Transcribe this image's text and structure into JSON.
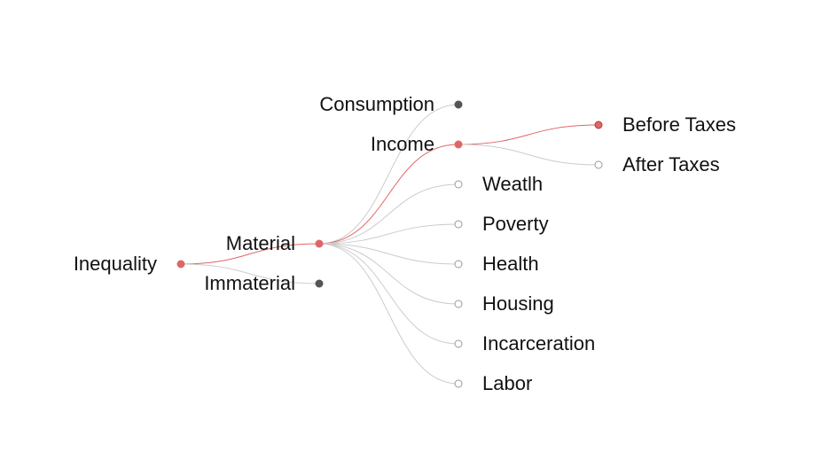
{
  "tree": {
    "highlight_color": "#e06666",
    "link_color": "#cccccc",
    "filled_color": "#555555",
    "open_fill": "#ffffff",
    "open_stroke": "#999999",
    "nodes": [
      {
        "id": "inequality",
        "label": "Inequality",
        "parent": null,
        "state": "active"
      },
      {
        "id": "material",
        "label": "Material",
        "parent": "inequality",
        "state": "active"
      },
      {
        "id": "immaterial",
        "label": "Immaterial",
        "parent": "inequality",
        "state": "collapsed"
      },
      {
        "id": "consumption",
        "label": "Consumption",
        "parent": "material",
        "state": "collapsed"
      },
      {
        "id": "income",
        "label": "Income",
        "parent": "material",
        "state": "active"
      },
      {
        "id": "wealth",
        "label": "Weatlh",
        "parent": "material",
        "state": "leaf"
      },
      {
        "id": "poverty",
        "label": "Poverty",
        "parent": "material",
        "state": "leaf"
      },
      {
        "id": "health",
        "label": "Health",
        "parent": "material",
        "state": "leaf"
      },
      {
        "id": "housing",
        "label": "Housing",
        "parent": "material",
        "state": "leaf"
      },
      {
        "id": "incarceration",
        "label": "Incarceration",
        "parent": "material",
        "state": "leaf"
      },
      {
        "id": "labor",
        "label": "Labor",
        "parent": "material",
        "state": "leaf"
      },
      {
        "id": "before-taxes",
        "label": "Before Taxes",
        "parent": "income",
        "state": "selected"
      },
      {
        "id": "after-taxes",
        "label": "After Taxes",
        "parent": "income",
        "state": "leaf"
      }
    ]
  }
}
